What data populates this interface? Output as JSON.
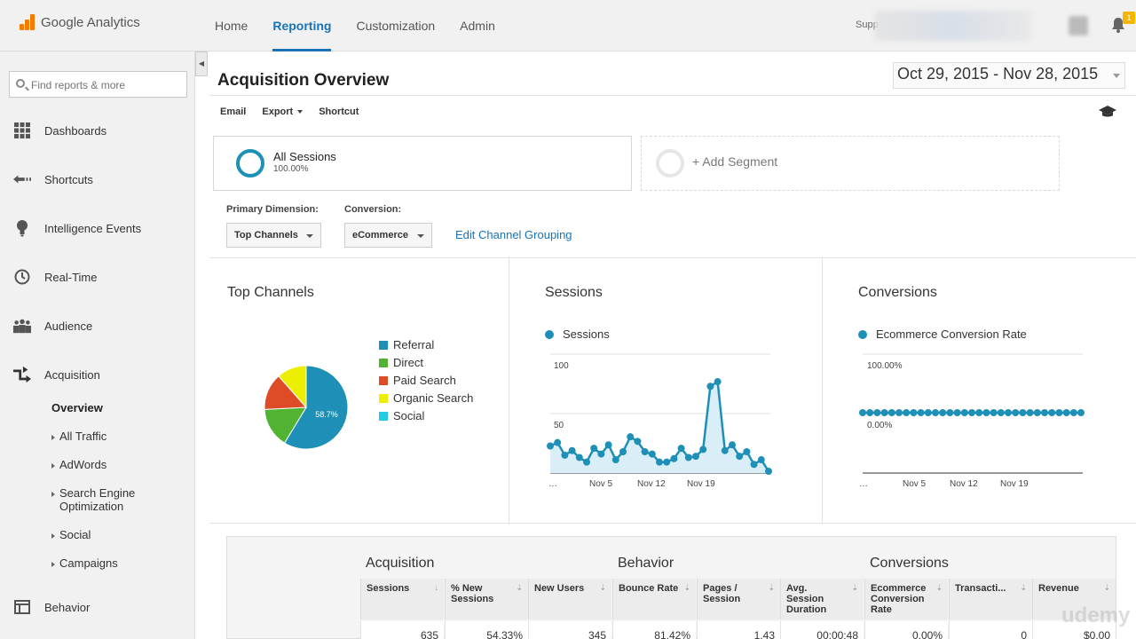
{
  "app": {
    "name": "Google Analytics"
  },
  "topnav": {
    "items": [
      {
        "label": "Home"
      },
      {
        "label": "Reporting"
      },
      {
        "label": "Customization"
      },
      {
        "label": "Admin"
      }
    ]
  },
  "account": {
    "label": "Supp"
  },
  "notifications": {
    "count": "1"
  },
  "sidebar": {
    "search_placeholder": "Find reports & more",
    "items": [
      {
        "label": "Dashboards"
      },
      {
        "label": "Shortcuts"
      },
      {
        "label": "Intelligence Events"
      },
      {
        "label": "Real-Time"
      },
      {
        "label": "Audience"
      },
      {
        "label": "Acquisition"
      },
      {
        "label": "Behavior"
      }
    ],
    "subitems": [
      {
        "label": "Overview"
      },
      {
        "label": "All Traffic"
      },
      {
        "label": "AdWords"
      },
      {
        "label": "Search Engine"
      },
      {
        "label": "Optimization"
      },
      {
        "label": "Social"
      },
      {
        "label": "Campaigns"
      }
    ]
  },
  "page": {
    "title": "Acquisition Overview",
    "date_start": "Oct 29, 2015",
    "date_sep": " - ",
    "date_end": "Nov 28, 2015"
  },
  "toolbar": {
    "email": "Email",
    "export": "Export",
    "shortcut": "Shortcut"
  },
  "segment": {
    "name": "All Sessions",
    "pct": "100.00%",
    "add_label": "+ Add Segment"
  },
  "dimension": {
    "primary_label": "Primary Dimension:",
    "primary_value": "Top Channels",
    "conversion_label": "Conversion:",
    "conversion_value": "eCommerce",
    "edit_link": "Edit Channel Grouping"
  },
  "panels": {
    "top_channels_title": "Top Channels",
    "sessions_title": "Sessions",
    "conversions_title": "Conversions"
  },
  "chart_data": [
    {
      "type": "pie",
      "title": "Top Channels",
      "slices": [
        {
          "name": "Referral",
          "value": 58.7,
          "color": "#1e8fb6"
        },
        {
          "name": "Direct",
          "value": 15.5,
          "color": "#50b432"
        },
        {
          "name": "Paid Search",
          "value": 14.3,
          "color": "#dd4b27"
        },
        {
          "name": "Organic Search",
          "value": 11.5,
          "color": "#edef00"
        },
        {
          "name": "Social",
          "value": 0.0,
          "color": "#24cbe5"
        }
      ],
      "label": "58.7%"
    },
    {
      "type": "area",
      "title": "Sessions",
      "series": [
        {
          "name": "Sessions",
          "color": "#1e8fb6",
          "values": [
            20,
            23,
            12,
            16,
            10,
            6,
            18,
            13,
            21,
            8,
            15,
            28,
            24,
            15,
            13,
            6,
            6,
            9,
            18,
            10,
            11,
            17,
            72,
            76,
            16,
            21,
            11,
            15,
            4,
            8,
            -2
          ]
        }
      ],
      "y_ticks": [
        "100",
        "50"
      ],
      "x_labels": [
        "…",
        "Nov 5",
        "Nov 12",
        "Nov 19"
      ],
      "ylim": [
        0,
        100
      ]
    },
    {
      "type": "line",
      "title": "Conversions",
      "series": [
        {
          "name": "Ecommerce Conversion Rate",
          "color": "#1e8fb6",
          "values": [
            0,
            0,
            0,
            0,
            0,
            0,
            0,
            0,
            0,
            0,
            0,
            0,
            0,
            0,
            0,
            0,
            0,
            0,
            0,
            0,
            0,
            0,
            0,
            0,
            0,
            0,
            0,
            0,
            0,
            0,
            0
          ]
        }
      ],
      "y_ticks": [
        "100.00%",
        "0.00%"
      ],
      "x_labels": [
        "…",
        "Nov 5",
        "Nov 12",
        "Nov 19"
      ]
    }
  ],
  "table": {
    "groups": [
      "Acquisition",
      "Behavior",
      "Conversions"
    ],
    "columns": [
      {
        "label": "Sessions",
        "sort": "↓"
      },
      {
        "label": "% New Sessions",
        "sort": "⇣"
      },
      {
        "label": "New Users",
        "sort": "⇣"
      },
      {
        "label": "Bounce Rate",
        "sort": "⇣"
      },
      {
        "label": "Pages / Session",
        "sort": "⇣"
      },
      {
        "label": "Avg. Session Duration",
        "sort": "⇣"
      },
      {
        "label": "Ecommerce Conversion Rate",
        "sort": "⇣"
      },
      {
        "label": "Transacti...",
        "sort": "⇣"
      },
      {
        "label": "Revenue",
        "sort": "⇣"
      }
    ],
    "totals": [
      "635",
      "54.33%",
      "345",
      "81.42%",
      "1.43",
      "00:00:48",
      "0.00%",
      "0",
      "$0.00"
    ]
  },
  "watermark": "udemy"
}
